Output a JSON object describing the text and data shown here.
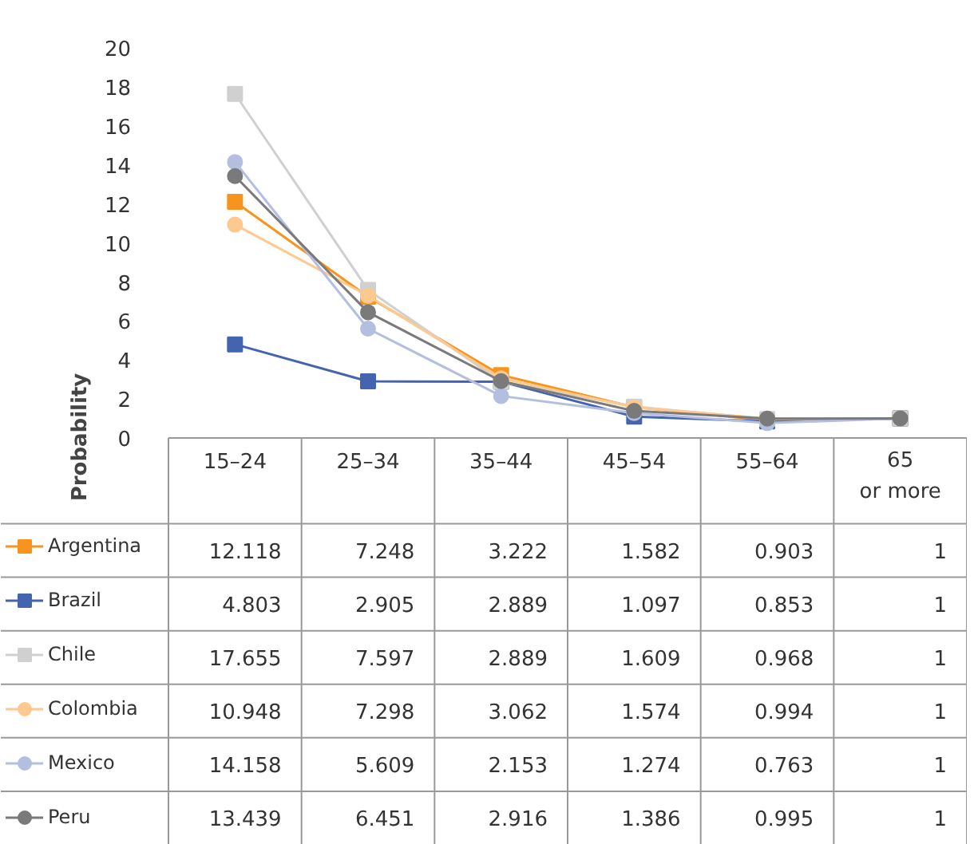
{
  "chart_data": {
    "type": "line",
    "ylabel": "Probability",
    "categories": [
      "15–24",
      "25–34",
      "35–44",
      "45–54",
      "55–64",
      "65 or more"
    ],
    "ylim": [
      0,
      20
    ],
    "yticks": [
      0,
      2,
      4,
      6,
      8,
      10,
      12,
      14,
      16,
      18,
      20
    ],
    "grid": false,
    "legend": "bottom",
    "data_labels": true,
    "series": [
      {
        "name": "Argentina",
        "color": "#f7941d",
        "marker": "square",
        "values": [
          12.118,
          7.248,
          3.222,
          1.582,
          0.903,
          1
        ]
      },
      {
        "name": "Brazil",
        "color": "#4464b0",
        "marker": "square",
        "values": [
          4.803,
          2.905,
          2.889,
          1.097,
          0.853,
          1
        ]
      },
      {
        "name": "Chile",
        "color": "#d0d0d0",
        "marker": "square",
        "values": [
          17.655,
          7.597,
          2.889,
          1.609,
          0.968,
          1
        ]
      },
      {
        "name": "Colombia",
        "color": "#fdc98f",
        "marker": "circle",
        "values": [
          10.948,
          7.298,
          3.062,
          1.574,
          0.994,
          1
        ]
      },
      {
        "name": "Mexico",
        "color": "#b4bfe0",
        "marker": "circle",
        "values": [
          14.158,
          5.609,
          2.153,
          1.274,
          0.763,
          1
        ]
      },
      {
        "name": "Peru",
        "color": "#7a7a7a",
        "marker": "circle",
        "values": [
          13.439,
          6.451,
          2.916,
          1.386,
          0.995,
          1
        ]
      }
    ]
  }
}
